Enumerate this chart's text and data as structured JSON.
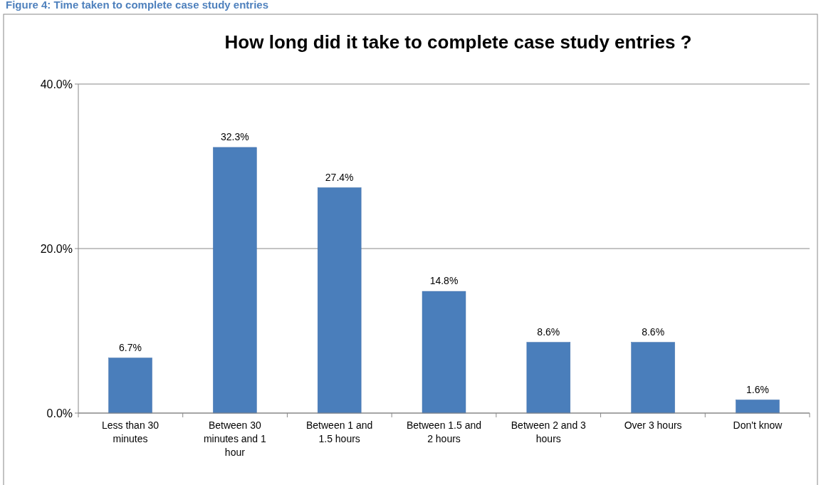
{
  "chart_data": {
    "type": "bar",
    "title": "How long did it take to complete case study entries ?",
    "annotations": [
      "Figure 4: Time taken to complete case study entries"
    ],
    "categories": [
      "Less than 30 minutes",
      "Between 30 minutes and 1 hour",
      "Between 1 and 1.5 hours",
      "Between 1.5 and 2 hours",
      "Between 2 and 3 hours",
      "Over 3 hours",
      "Don't know"
    ],
    "values": [
      6.7,
      32.3,
      27.4,
      14.8,
      8.6,
      8.6,
      1.6
    ],
    "value_labels": [
      "6.7%",
      "32.3%",
      "27.4%",
      "14.8%",
      "8.6%",
      "8.6%",
      "1.6%"
    ],
    "color": "#4a7ebb",
    "ylim": [
      0,
      40
    ],
    "yticks": [
      {
        "value": 0,
        "label": "0.0%"
      },
      {
        "value": 20,
        "label": "20.0%"
      },
      {
        "value": 40,
        "label": "40.0%"
      }
    ],
    "grid": "y"
  }
}
